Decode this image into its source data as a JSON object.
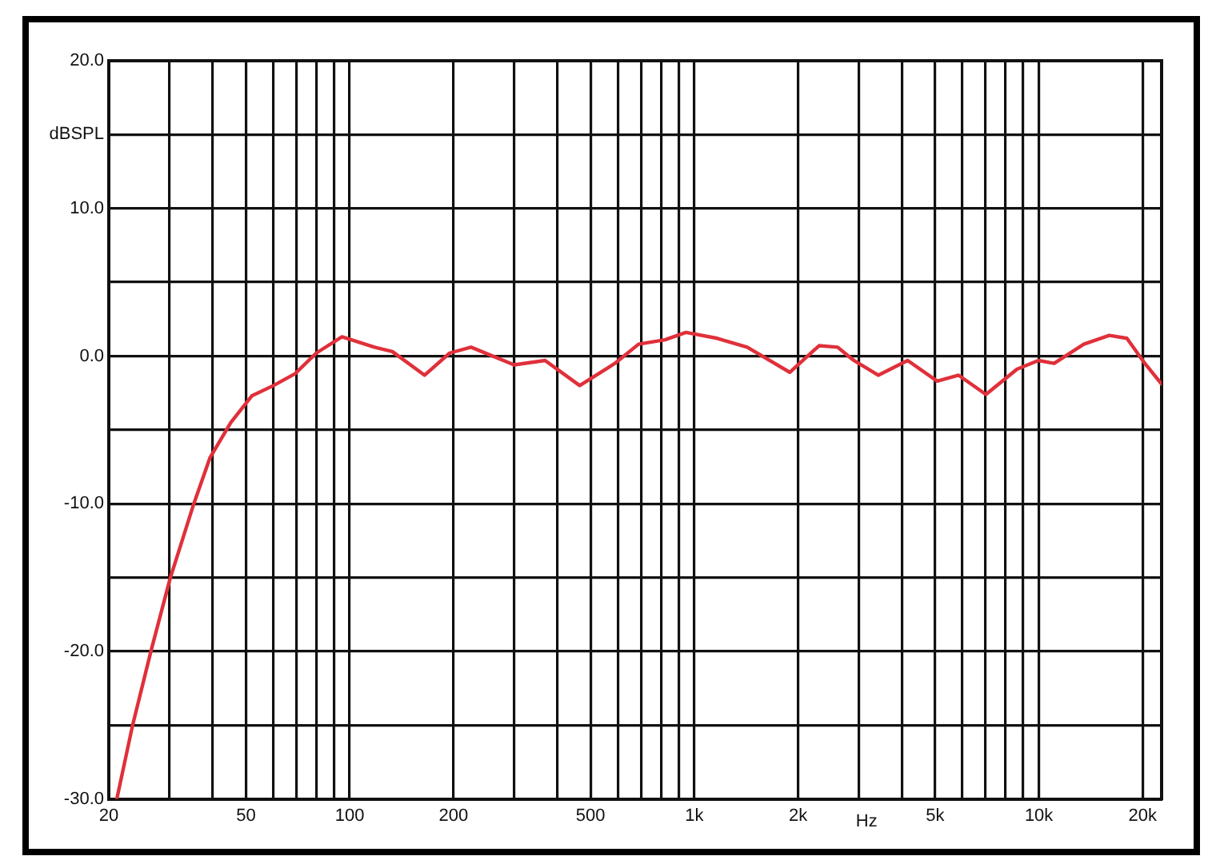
{
  "chart_data": {
    "type": "line",
    "xlabel": "Hz",
    "ylabel": "dBSPL",
    "log": "x",
    "grid": true,
    "legend": false,
    "marker": "none",
    "line_style": "solid",
    "xlim": [
      20,
      22700
    ],
    "ylim": [
      -30,
      20
    ],
    "xticks": [
      20,
      {
        "value": 30,
        "label": null
      },
      {
        "value": 40,
        "label": null
      },
      50,
      {
        "value": 60,
        "label": null
      },
      {
        "value": 70,
        "label": null
      },
      {
        "value": 80,
        "label": null
      },
      {
        "value": 90,
        "label": null
      },
      100,
      200,
      {
        "value": 300,
        "label": null
      },
      {
        "value": 400,
        "label": null
      },
      500,
      {
        "value": 600,
        "label": null
      },
      {
        "value": 700,
        "label": null
      },
      {
        "value": 800,
        "label": null
      },
      {
        "value": 900,
        "label": null
      },
      {
        "value": 1000,
        "label": "1k"
      },
      {
        "value": 2000,
        "label": "2k"
      },
      {
        "value": 3000,
        "label": null
      },
      {
        "value": 4000,
        "label": null
      },
      {
        "value": 5000,
        "label": "5k"
      },
      {
        "value": 6000,
        "label": null
      },
      {
        "value": 7000,
        "label": null
      },
      {
        "value": 8000,
        "label": null
      },
      {
        "value": 9000,
        "label": null
      },
      {
        "value": 10000,
        "label": "10k"
      },
      {
        "value": 20000,
        "label": "20k"
      }
    ],
    "yticks": [
      {
        "value": -30,
        "label": "-30.0"
      },
      {
        "value": -25,
        "label": null
      },
      {
        "value": -20,
        "label": "-20.0"
      },
      {
        "value": -15,
        "label": null
      },
      {
        "value": -10,
        "label": "-10.0"
      },
      {
        "value": -5,
        "label": null
      },
      {
        "value": 0,
        "label": "0.0"
      },
      {
        "value": 5,
        "label": null
      },
      {
        "value": 10,
        "label": "10.0"
      },
      {
        "value": 15,
        "label": null
      },
      {
        "value": 20,
        "label": "20.0"
      }
    ],
    "series": [
      {
        "color": "#e0303a",
        "x": [
          21.1,
          23.4,
          26.5,
          30.1,
          35.3,
          39.3,
          45.2,
          52,
          60.1,
          69.4,
          80,
          95,
          118,
          133,
          165,
          195,
          225,
          300,
          369,
          465,
          588,
          689,
          822,
          946,
          1165,
          1424,
          1892,
          2302,
          2606,
          2903,
          3418,
          4161,
          5068,
          5849,
          7018,
          8630,
          9967,
          11070,
          13500,
          16000,
          18000,
          20300,
          22700
        ],
        "values": [
          -30,
          -25.1,
          -20,
          -15.1,
          -10,
          -6.9,
          -4.5,
          -2.7,
          -2,
          -1.2,
          0.2,
          1.3,
          0.6,
          0.3,
          -1.3,
          0.2,
          0.6,
          -0.6,
          -0.3,
          -2,
          -0.5,
          0.8,
          1.1,
          1.6,
          1.2,
          0.6,
          -1.1,
          0.7,
          0.6,
          -0.3,
          -1.3,
          -0.3,
          -1.7,
          -1.3,
          -2.6,
          -0.9,
          -0.3,
          -0.5,
          0.8,
          1.4,
          1.2,
          -0.5,
          -1.9
        ]
      }
    ]
  }
}
